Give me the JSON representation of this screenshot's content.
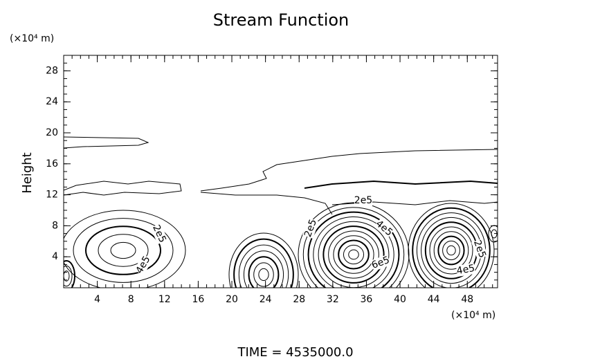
{
  "chart_data": {
    "type": "contour",
    "title": "Stream Function",
    "xlabel": "(×10⁴ m)",
    "ylabel": "Height",
    "yunit": "(×10⁴ m)",
    "footer": "TIME  =  4535000.0",
    "xlim": [
      0,
      51.6
    ],
    "ylim": [
      0,
      30
    ],
    "xticks": [
      4,
      8,
      12,
      16,
      20,
      24,
      28,
      32,
      36,
      40,
      44,
      48
    ],
    "yticks": [
      4,
      8,
      12,
      16,
      20,
      24,
      28
    ],
    "contour_labels": [
      {
        "value": 200000,
        "label": "2e5"
      },
      {
        "value": 400000,
        "label": "4e5"
      },
      {
        "value": 200000,
        "label": "2e5"
      },
      {
        "value": 200000,
        "label": "2e5"
      },
      {
        "value": 400000,
        "label": "4e5"
      },
      {
        "value": 600000,
        "label": "6e5"
      },
      {
        "value": 200000,
        "label": "2e5"
      },
      {
        "value": 400000,
        "label": "4e5"
      }
    ],
    "color": "#000000"
  }
}
